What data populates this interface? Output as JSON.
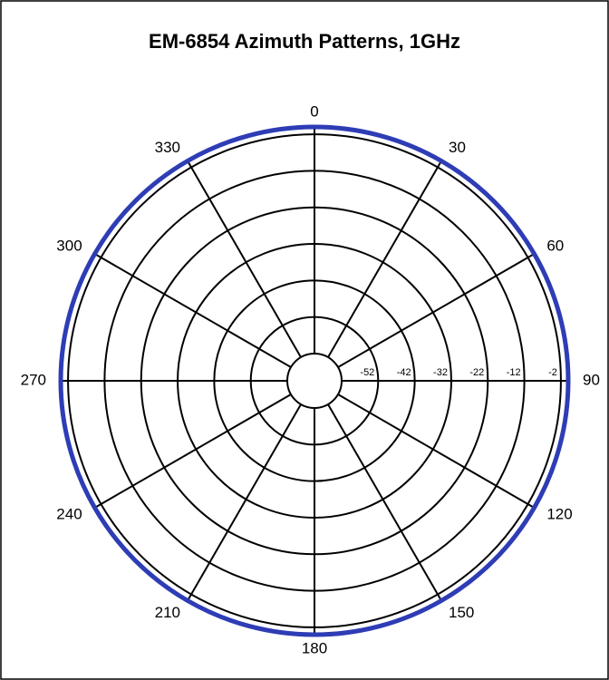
{
  "chart_data": {
    "type": "polar",
    "title": "EM-6854 Azimuth Patterns, 1GHz",
    "theta": [
      0,
      30,
      60,
      90,
      120,
      150,
      180,
      210,
      240,
      270,
      300,
      330
    ],
    "series": [
      {
        "color": "#2e3db5",
        "values": [
          0,
          0,
          0,
          0,
          0,
          0,
          0,
          0,
          0,
          0,
          0,
          0
        ]
      }
    ],
    "rlim": [
      -62,
      0
    ],
    "rticks": [
      -52,
      -42,
      -32,
      -22,
      -12,
      -2
    ],
    "thetaticks": [
      0,
      30,
      60,
      90,
      120,
      150,
      180,
      210,
      240,
      270,
      300,
      330
    ],
    "grid": true
  }
}
